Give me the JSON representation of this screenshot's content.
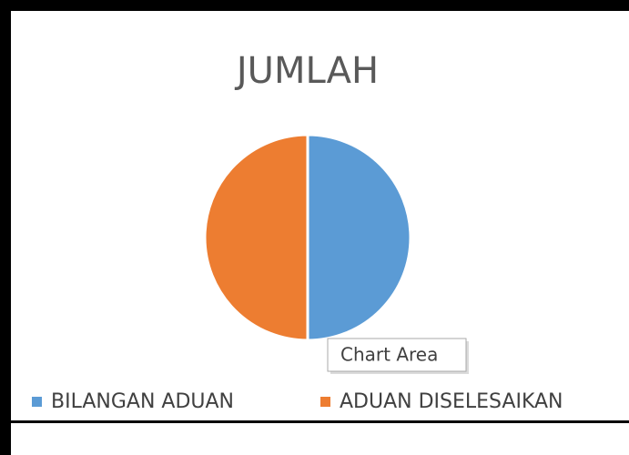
{
  "chart_data": {
    "type": "pie",
    "title": "JUMLAH",
    "categories": [
      "BILANGAN ADUAN",
      "ADUAN DISELESAIKAN"
    ],
    "values": [
      50,
      50
    ],
    "colors": [
      "#5b9bd5",
      "#ed7d31"
    ],
    "legend": "bottom",
    "tooltip": "Chart Area"
  }
}
